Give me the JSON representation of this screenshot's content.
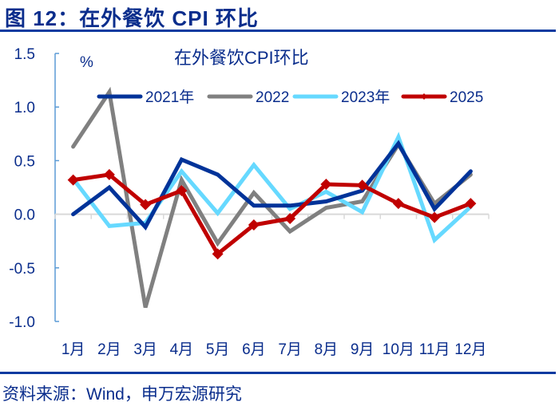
{
  "figure": {
    "title": "图 12：在外餐饮 CPI 环比",
    "source": "资料来源：Wind，申万宏源研究"
  },
  "colors": {
    "title": "#0a2d8c",
    "rule": "#0a3aa0",
    "axis": "#5b9bd5",
    "zero_line": "#d9d9d9",
    "s2021": "#003399",
    "s2022": "#808080",
    "s2023": "#66d9ff",
    "s2025": "#c00000"
  },
  "chart_data": {
    "type": "line",
    "title": "在外餐饮CPI环比",
    "xlabel": "",
    "ylabel": "%",
    "ylim": [
      -1.0,
      1.5
    ],
    "yticks": [
      "1.5",
      "1.0",
      "0.5",
      "0.0",
      "-0.5",
      "-1.0"
    ],
    "grid": false,
    "legend_position": "top",
    "categories": [
      "1月",
      "2月",
      "3月",
      "4月",
      "5月",
      "6月",
      "7月",
      "8月",
      "9月",
      "10月",
      "11月",
      "12月"
    ],
    "series": [
      {
        "name": "2021年",
        "values": [
          0.0,
          0.25,
          -0.12,
          0.51,
          0.37,
          0.08,
          0.08,
          0.12,
          0.22,
          0.66,
          0.05,
          0.4
        ]
      },
      {
        "name": "2022",
        "values": [
          0.63,
          1.14,
          -0.87,
          0.32,
          -0.27,
          0.2,
          -0.16,
          0.06,
          0.12,
          0.65,
          0.1,
          0.37
        ]
      },
      {
        "name": "2023年",
        "values": [
          0.33,
          -0.11,
          -0.08,
          0.4,
          0.01,
          0.46,
          0.05,
          0.21,
          0.02,
          0.72,
          -0.24,
          0.07
        ]
      },
      {
        "name": "2025",
        "values": [
          0.32,
          0.37,
          0.09,
          0.22,
          -0.37,
          -0.1,
          -0.04,
          0.28,
          0.27,
          0.1,
          -0.03,
          0.1
        ]
      }
    ]
  }
}
